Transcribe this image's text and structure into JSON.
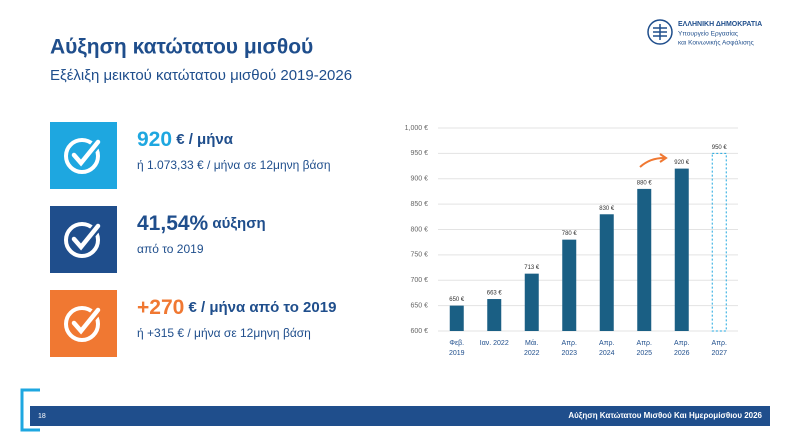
{
  "header": {
    "title": "Αύξηση κατώτατου μισθού",
    "subtitle": "Εξέλιξη μεικτού κατώτατου μισθού 2019-2026"
  },
  "logo": {
    "lines": [
      "ΕΛΛΗΝΙΚΗ ΔΗΜΟΚΡΑΤΙΑ",
      "Υπουργείο Εργασίας",
      "και Κοινωνικής Ασφάλισης"
    ]
  },
  "cards": [
    {
      "value": "920",
      "unit": " € / μήνα",
      "note": "ή 1.073,33 € / μήνα σε 12μηνη βάση",
      "color": "#1ea7e0"
    },
    {
      "value": "41,54%",
      "unit": " αύξηση",
      "note": "από το 2019",
      "color": "#1f4e8c"
    },
    {
      "value": "+270",
      "unit": " € / μήνα από το 2019",
      "note": "ή +315 € / μήνα σε 12μηνη βάση",
      "color": "#f07832"
    }
  ],
  "footer": {
    "page": "18",
    "title": "Αύξηση Κατώτατου Μισθού Και Ημερομίσθιου 2026"
  },
  "chart_data": {
    "type": "bar",
    "categories": [
      [
        "Φεβ.",
        "2019"
      ],
      [
        "Ιαν. 2022"
      ],
      [
        "Μάι.",
        "2022"
      ],
      [
        "Απρ.",
        "2023"
      ],
      [
        "Απρ.",
        "2024"
      ],
      [
        "Απρ.",
        "2025"
      ],
      [
        "Απρ.",
        "2026"
      ],
      [
        "Απρ.",
        "2027"
      ]
    ],
    "values": [
      650,
      663,
      713,
      780,
      830,
      880,
      920,
      950
    ],
    "value_labels": [
      "650 €",
      "663 €",
      "713 €",
      "780 €",
      "830 €",
      "880 €",
      "920 €",
      "950 €"
    ],
    "dashed": [
      false,
      false,
      false,
      false,
      false,
      false,
      false,
      true
    ],
    "color": "#1a5f84",
    "dashed_color": "#1ea7e0",
    "ylim": [
      600,
      1000
    ],
    "yticks": [
      {
        "value": 600,
        "label": "600 €"
      },
      {
        "value": 650,
        "label": "650 €"
      },
      {
        "value": 700,
        "label": "700 €"
      },
      {
        "value": 750,
        "label": "750 €"
      },
      {
        "value": 800,
        "label": "800 €"
      },
      {
        "value": 850,
        "label": "850 €"
      },
      {
        "value": 900,
        "label": "900 €"
      },
      {
        "value": 950,
        "label": "950 €"
      },
      {
        "value": 1000,
        "label": "1,000 €"
      }
    ],
    "grid": true
  }
}
